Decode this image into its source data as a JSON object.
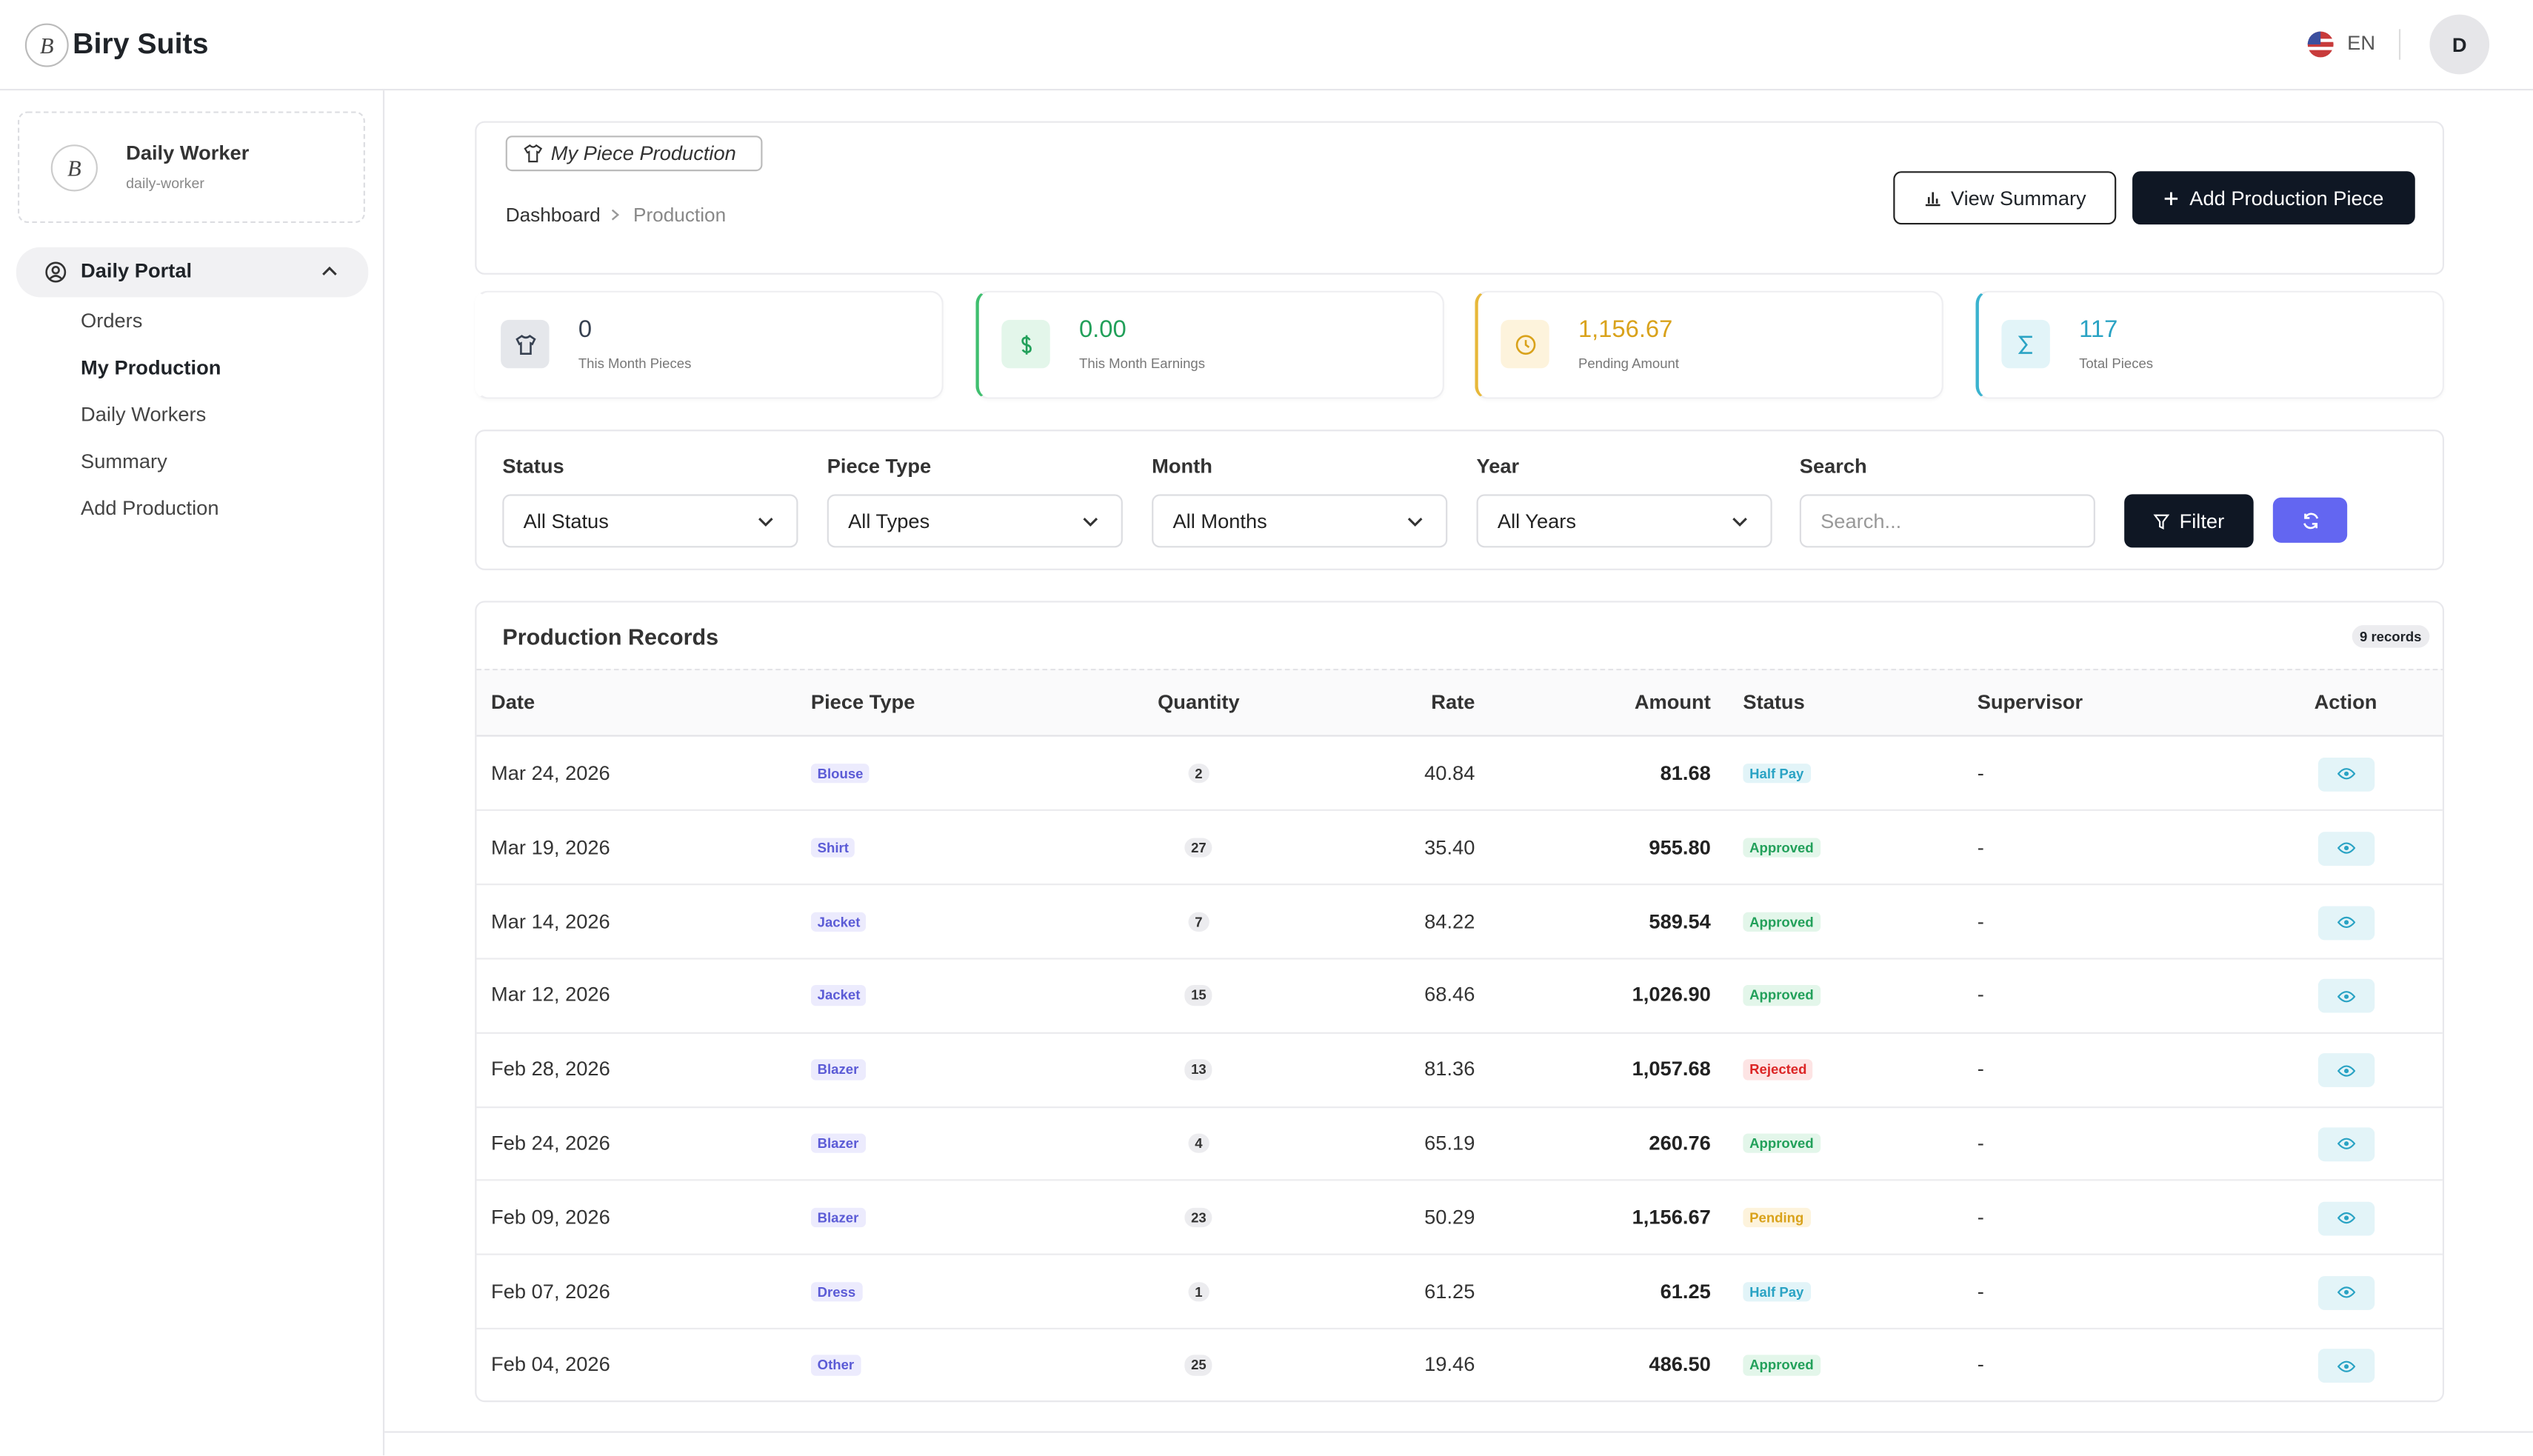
{
  "brand": "Biry Suits",
  "topbar": {
    "language": "EN",
    "avatar": "D"
  },
  "sidebar": {
    "user_name": "Daily Worker",
    "user_role": "daily-worker",
    "section": "Daily Portal",
    "links": [
      "Orders",
      "My Production",
      "Daily Workers",
      "Summary",
      "Add Production"
    ]
  },
  "page": {
    "badge": "My Piece Production",
    "breadcrumb": [
      "Dashboard",
      "Production"
    ],
    "buttons": [
      "View Summary",
      "Add Production Piece"
    ]
  },
  "stats": [
    {
      "value": "0",
      "label": "This Month Pieces",
      "color": "#374151",
      "bg": "#e5e7eb",
      "border": "#ffffff"
    },
    {
      "value": "0.00",
      "label": "This Month Earnings",
      "color": "#22a05a",
      "bg": "#e3f6ea",
      "border": "#3fbf6f"
    },
    {
      "value": "1,156.67",
      "label": "Pending Amount",
      "color": "#d9a21b",
      "bg": "#fdf3dc",
      "border": "#e7b83a"
    },
    {
      "value": "117",
      "label": "Total Pieces",
      "color": "#2aa3c4",
      "bg": "#e2f4f8",
      "border": "#3ab3cf"
    }
  ],
  "filters": [
    {
      "label": "Status",
      "value": "All Status"
    },
    {
      "label": "Piece Type",
      "value": "All Types"
    },
    {
      "label": "Month",
      "value": "All Months"
    },
    {
      "label": "Year",
      "value": "All Years"
    }
  ],
  "search": {
    "label": "Search",
    "placeholder": "Search..."
  },
  "filter_button": "Filter",
  "table": {
    "title": "Production Records",
    "count": "9 records",
    "columns": [
      "Date",
      "Piece Type",
      "Quantity",
      "Rate",
      "Amount",
      "Status",
      "Supervisor",
      "Action"
    ],
    "status_colors": {
      "Half Pay": [
        "#2aa3c4",
        "#e2f4f8"
      ],
      "Approved": [
        "#22a05a",
        "#e3f6ea"
      ],
      "Rejected": [
        "#dc2626",
        "#fde4e4"
      ],
      "Pending": [
        "#d9a21b",
        "#fdf3dc"
      ]
    },
    "rows": [
      [
        "Mar 24, 2026",
        "Blouse",
        "2",
        "40.84",
        "81.68",
        "Half Pay",
        "-"
      ],
      [
        "Mar 19, 2026",
        "Shirt",
        "27",
        "35.40",
        "955.80",
        "Approved",
        "-"
      ],
      [
        "Mar 14, 2026",
        "Jacket",
        "7",
        "84.22",
        "589.54",
        "Approved",
        "-"
      ],
      [
        "Mar 12, 2026",
        "Jacket",
        "15",
        "68.46",
        "1,026.90",
        "Approved",
        "-"
      ],
      [
        "Feb 28, 2026",
        "Blazer",
        "13",
        "81.36",
        "1,057.68",
        "Rejected",
        "-"
      ],
      [
        "Feb 24, 2026",
        "Blazer",
        "4",
        "65.19",
        "260.76",
        "Approved",
        "-"
      ],
      [
        "Feb 09, 2026",
        "Blazer",
        "23",
        "50.29",
        "1,156.67",
        "Pending",
        "-"
      ],
      [
        "Feb 07, 2026",
        "Dress",
        "1",
        "61.25",
        "61.25",
        "Half Pay",
        "-"
      ],
      [
        "Feb 04, 2026",
        "Other",
        "25",
        "19.46",
        "486.50",
        "Approved",
        "-"
      ]
    ]
  }
}
